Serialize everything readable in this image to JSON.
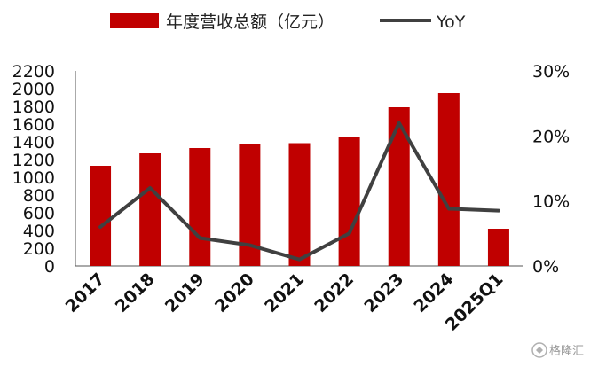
{
  "chart_data": {
    "type": "bar",
    "categories": [
      "2017",
      "2018",
      "2019",
      "2020",
      "2021",
      "2022",
      "2023",
      "2024",
      "2025Q1"
    ],
    "series": [
      {
        "name": "年度营收总额（亿元）",
        "type": "bar",
        "axis": "left",
        "color": "#C00000",
        "values": [
          1130,
          1270,
          1330,
          1370,
          1385,
          1455,
          1790,
          1950,
          420
        ]
      },
      {
        "name": "YoY",
        "type": "line",
        "axis": "right",
        "color": "#404040",
        "values": [
          6.0,
          12.0,
          4.3,
          3.2,
          1.0,
          5.0,
          22.0,
          8.8,
          8.5
        ]
      }
    ],
    "y_left": {
      "min": 0,
      "max": 2200,
      "ticks": [
        "0",
        "200",
        "400",
        "600",
        "800",
        "1000",
        "1200",
        "1400",
        "1600",
        "1800",
        "2000",
        "2200"
      ]
    },
    "y_right": {
      "min": 0,
      "max": 30,
      "unit": "%",
      "ticks": [
        "0%",
        "10%",
        "20%",
        "30%"
      ]
    },
    "legend_position": "top-center",
    "grid": false
  },
  "legend": {
    "bar_label": "年度营收总额（亿元）",
    "line_label": "YoY"
  },
  "watermark": {
    "text": "格隆汇",
    "icon": "watermark-logo-icon"
  }
}
